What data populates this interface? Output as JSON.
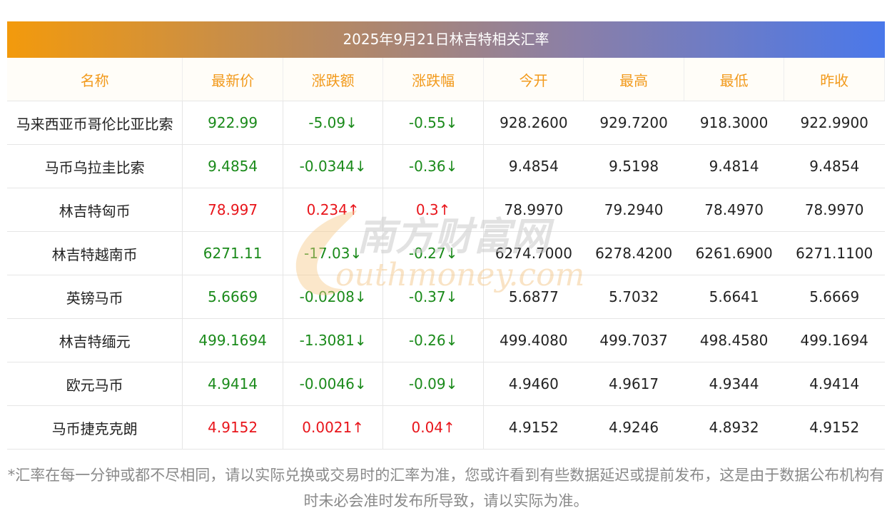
{
  "title": "2025年9月21日林吉特相关汇率",
  "headers": [
    "名称",
    "最新价",
    "涨跌额",
    "涨跌幅",
    "今开",
    "最高",
    "最低",
    "昨收"
  ],
  "rows": [
    {
      "name": "马来西亚币哥伦比亚比索",
      "latest": "922.99",
      "change": "-5.09↓",
      "pct": "-0.55↓",
      "open": "928.2600",
      "high": "929.7200",
      "low": "918.3000",
      "prev": "922.9900",
      "dir": "down"
    },
    {
      "name": "马币乌拉圭比索",
      "latest": "9.4854",
      "change": "-0.0344↓",
      "pct": "-0.36↓",
      "open": "9.4854",
      "high": "9.5198",
      "low": "9.4814",
      "prev": "9.4854",
      "dir": "down"
    },
    {
      "name": "林吉特匈币",
      "latest": "78.997",
      "change": "0.234↑",
      "pct": "0.3↑",
      "open": "78.9970",
      "high": "79.2940",
      "low": "78.4970",
      "prev": "78.9970",
      "dir": "up"
    },
    {
      "name": "林吉特越南币",
      "latest": "6271.11",
      "change": "-17.03↓",
      "pct": "-0.27↓",
      "open": "6274.7000",
      "high": "6278.4200",
      "low": "6261.6900",
      "prev": "6271.1100",
      "dir": "down"
    },
    {
      "name": "英镑马币",
      "latest": "5.6669",
      "change": "-0.0208↓",
      "pct": "-0.37↓",
      "open": "5.6877",
      "high": "5.7032",
      "low": "5.6641",
      "prev": "5.6669",
      "dir": "down"
    },
    {
      "name": "林吉特缅元",
      "latest": "499.1694",
      "change": "-1.3081↓",
      "pct": "-0.26↓",
      "open": "499.4080",
      "high": "499.7037",
      "low": "498.4580",
      "prev": "499.1694",
      "dir": "down"
    },
    {
      "name": "欧元马币",
      "latest": "4.9414",
      "change": "-0.0046↓",
      "pct": "-0.09↓",
      "open": "4.9460",
      "high": "4.9617",
      "low": "4.9344",
      "prev": "4.9414",
      "dir": "down"
    },
    {
      "name": "马币捷克克朗",
      "latest": "4.9152",
      "change": "0.0021↑",
      "pct": "0.04↑",
      "open": "4.9152",
      "high": "4.9246",
      "low": "4.8932",
      "prev": "4.9152",
      "dir": "up"
    }
  ],
  "watermark": {
    "cn": "南方财富网",
    "en": "outhmoney.com"
  },
  "footnote": "*汇率在每一分钟或都不尽相同，请以实际兑换或交易时的汇率为准，您或许看到有些数据延迟或提前发布，这是由于数据公布机构有时未必会准时发布所导致，请以实际为准。",
  "colors": {
    "up": "#e8151b",
    "down": "#1a8a1a",
    "header_text": "#f29a1c"
  }
}
